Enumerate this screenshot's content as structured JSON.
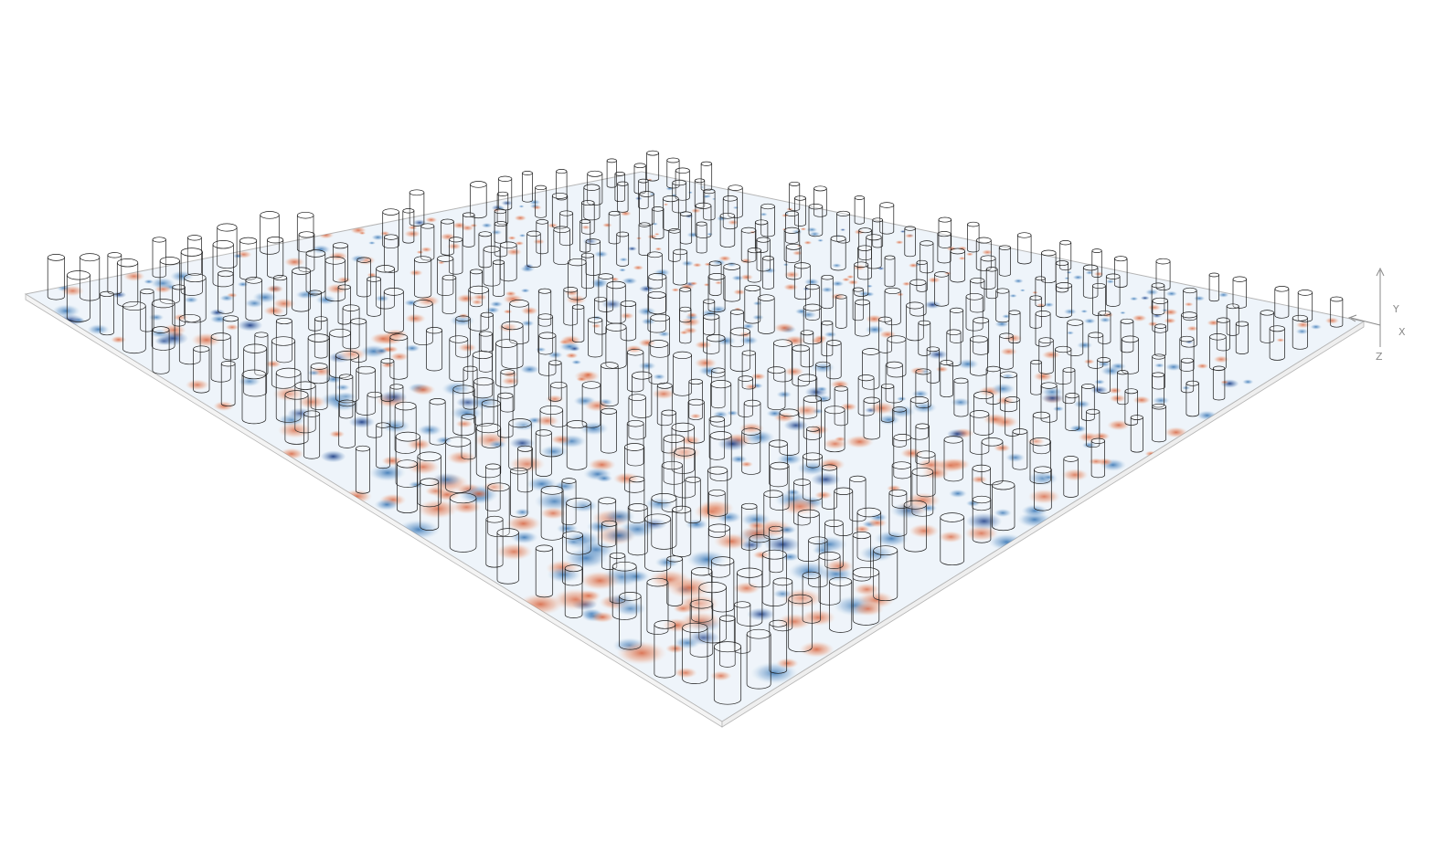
{
  "scene": {
    "type": "3d-field-visualization",
    "description_colors": {
      "positive": "#d7603a",
      "negative": "#2f6fb0",
      "neutral": "#ffffff",
      "outline": "#1a1a1a",
      "slab_edge": "#9a9a9a"
    },
    "grid": {
      "rows": 22,
      "cols": 24
    }
  },
  "axes": {
    "y_label": "Y",
    "x_label": "X",
    "z_label": "Z"
  }
}
